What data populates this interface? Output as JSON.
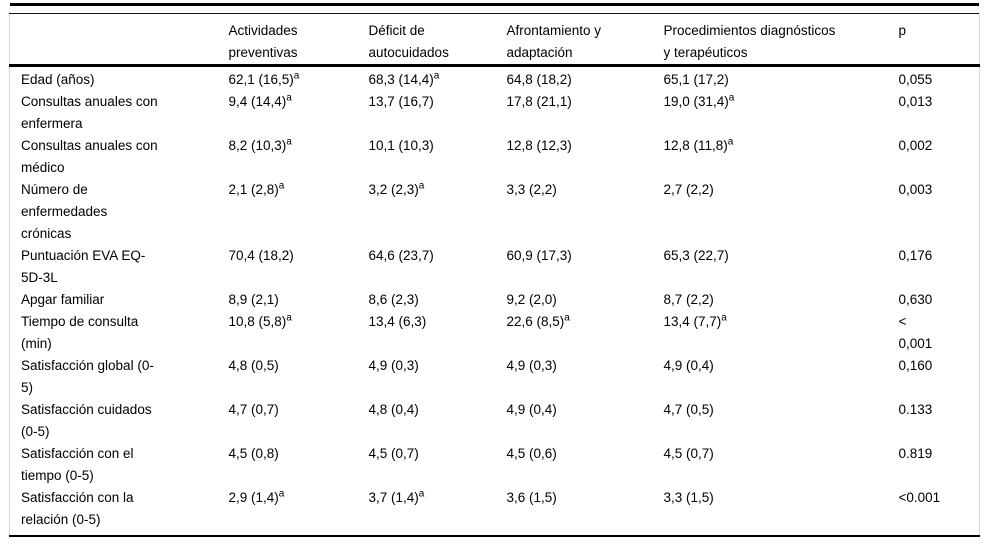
{
  "table": {
    "footnote_marker": "a",
    "rule_color": "#000000",
    "columns": [
      "",
      "Actividades\npreventivas",
      "Déficit de\nautocuidados",
      "Afrontamiento y\nadaptación",
      "Procedimientos diagnósticos\ny terapéuticos",
      "p"
    ],
    "rows": [
      {
        "label": "Edad (años)",
        "values": [
          "62,1 (16,5)^a",
          "68,3 (14,4)^a",
          "64,8 (18,2)",
          "65,1 (17,2)",
          "0,055"
        ]
      },
      {
        "label": "Consultas anuales con\nenfermera",
        "values": [
          "9,4 (14,4)^a",
          "13,7 (16,7)",
          "17,8 (21,1)",
          "19,0 (31,4)^a",
          "0,013"
        ]
      },
      {
        "label": "Consultas anuales con\nmédico",
        "values": [
          "8,2 (10,3)^a",
          "10,1 (10,3)",
          "12,8 (12,3)",
          "12,8 (11,8)^a",
          "0,002"
        ]
      },
      {
        "label": "Número de\nenfermedades\ncrónicas",
        "values": [
          "2,1 (2,8)^a",
          "3,2 (2,3)^a",
          "3,3 (2,2)",
          "2,7 (2,2)",
          "0,003"
        ]
      },
      {
        "label": "Puntuación EVA EQ-\n5D-3L",
        "values": [
          "70,4 (18,2)",
          "64,6 (23,7)",
          "60,9 (17,3)",
          "65,3 (22,7)",
          "0,176"
        ]
      },
      {
        "label": "Apgar familiar",
        "values": [
          "8,9 (2,1)",
          "8,6 (2,3)",
          "9,2 (2,0)",
          "8,7 (2,2)",
          "0,630"
        ]
      },
      {
        "label": "Tiempo de consulta\n(min)",
        "values": [
          "10,8 (5,8)^a",
          "13,4 (6,3)",
          "22,6 (8,5)^a",
          "13,4 (7,7)^a",
          "<\n0,001"
        ]
      },
      {
        "label": "Satisfacción global (0-\n5)",
        "values": [
          "4,8 (0,5)",
          "4,9 (0,3)",
          "4,9 (0,3)",
          "4,9 (0,4)",
          "0,160"
        ]
      },
      {
        "label": "Satisfacción cuidados\n(0-5)",
        "values": [
          "4,7 (0,7)",
          "4,8 (0,4)",
          "4,9 (0,4)",
          "4,7 (0,5)",
          "0.133"
        ]
      },
      {
        "label": "Satisfacción con el\ntiempo (0-5)",
        "values": [
          "4,5 (0,8)",
          "4,5 (0,7)",
          "4,5 (0,6)",
          "4,5 (0,7)",
          "0.819"
        ]
      },
      {
        "label": "Satisfacción con la\nrelación (0-5)",
        "values": [
          "2,9 (1,4)^a",
          "3,7 (1,4)^a",
          "3,6 (1,5)",
          "3,3 (1,5)",
          "<0.001"
        ]
      }
    ]
  }
}
